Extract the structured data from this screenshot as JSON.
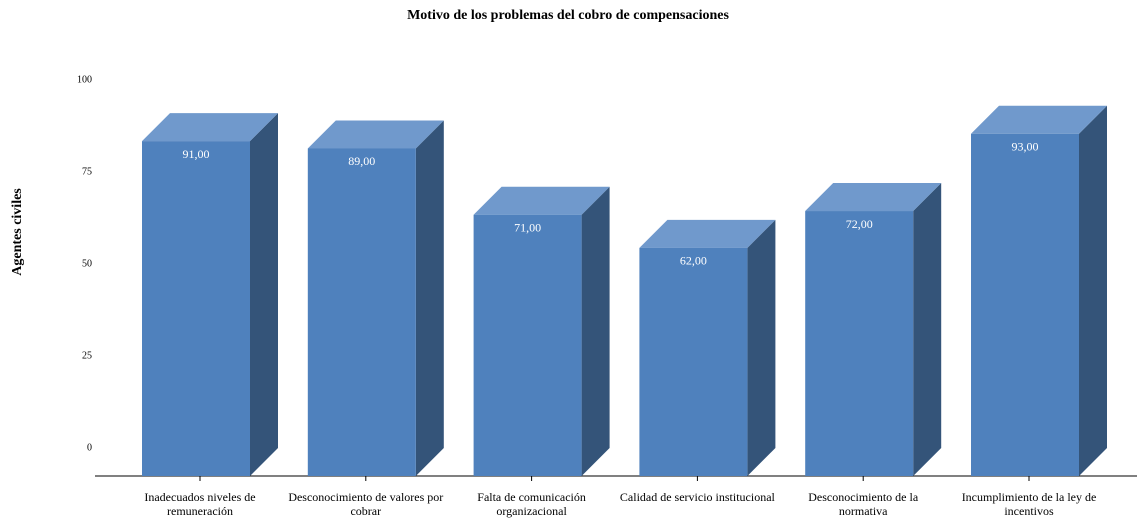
{
  "chart_data": {
    "type": "bar3d",
    "title": "Motivo de los problemas del cobro de compensaciones",
    "ylabel": "Agentes civiles",
    "categories": [
      "Inadecuados niveles de remuneración",
      "Desconocimiento de valores por cobrar",
      "Falta de comunicación organizacional",
      "Calidad de servicio institucional",
      "Desconocimiento de la normativa",
      "Incumplimiento de la ley de incentivos"
    ],
    "values": [
      91,
      89,
      71,
      62,
      72,
      93
    ],
    "value_labels": [
      "91,00",
      "89,00",
      "71,00",
      "62,00",
      "72,00",
      "93,00"
    ],
    "color": "#4f81bd",
    "top_color": "#7099cc",
    "side_color": "#345479",
    "ylim": [
      0,
      100
    ],
    "yticks": [
      0,
      25,
      50,
      75,
      100
    ],
    "grid": false
  }
}
